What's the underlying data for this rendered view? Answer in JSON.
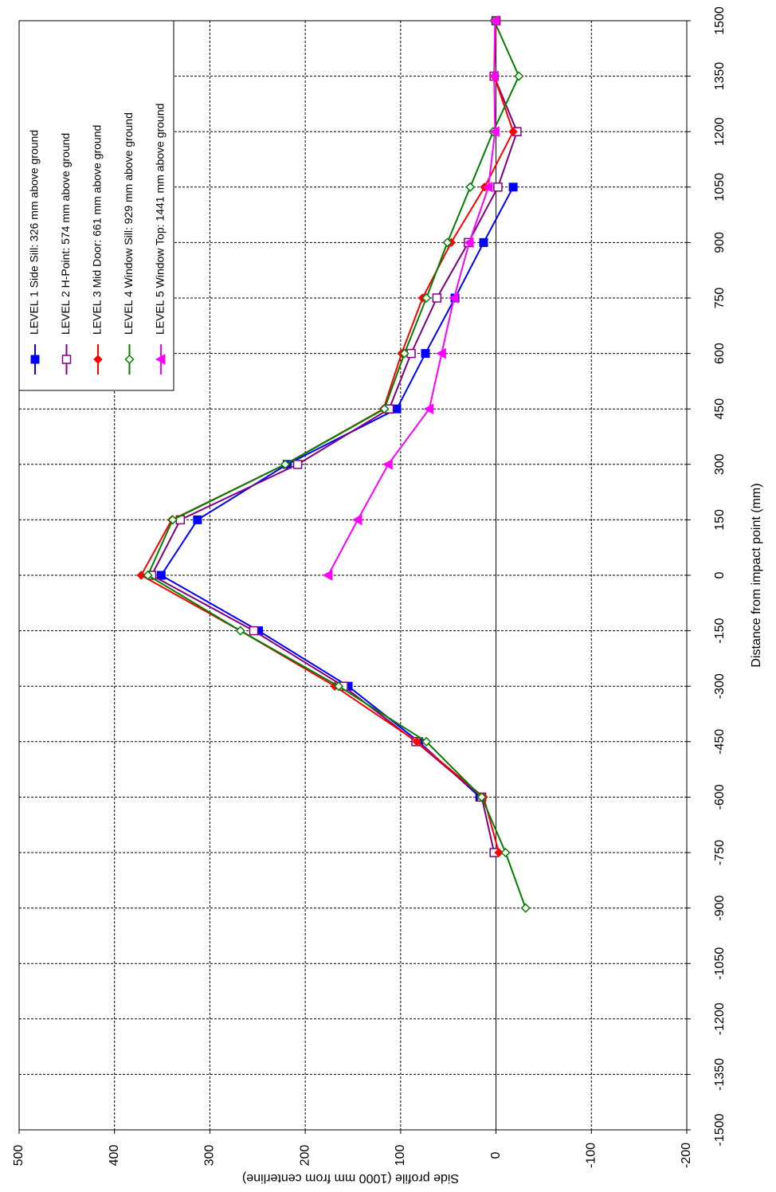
{
  "chart_data": {
    "type": "line",
    "xlabel": "Distance from impact point (mm)",
    "ylabel": "Side profile (1000 mm from centerline)",
    "x": [
      -900,
      -750,
      -600,
      -450,
      -300,
      -150,
      0,
      150,
      300,
      450,
      600,
      750,
      900,
      1050,
      1200,
      1350,
      1500
    ],
    "series": [
      {
        "name": "LEVEL 1 Side Sill:  326 mm above ground",
        "color": "#0000ff",
        "marker": "square",
        "values": [
          null,
          null,
          17,
          81,
          155,
          249,
          351,
          313,
          219,
          104,
          74,
          43,
          13,
          -18,
          null,
          null,
          null
        ]
      },
      {
        "name": "LEVEL 2 H-Point:  574 mm above ground",
        "color": "#800080",
        "marker": "open-square",
        "values": [
          null,
          2,
          15,
          84,
          160,
          254,
          361,
          331,
          208,
          112,
          89,
          62,
          29,
          -2,
          -22,
          2,
          0
        ]
      },
      {
        "name": "LEVEL 3 Mid Door:  661 mm above ground",
        "color": "#ff0000",
        "marker": "diamond",
        "values": [
          null,
          -3,
          13,
          83,
          169,
          268,
          372,
          340,
          221,
          118,
          99,
          77,
          47,
          12,
          -18,
          2,
          0
        ]
      },
      {
        "name": "LEVEL 4 Window Sill:  929 mm above ground",
        "color": "#008000",
        "marker": "open-diamond",
        "values": [
          -31,
          -10,
          15,
          73,
          165,
          268,
          365,
          339,
          221,
          117,
          96,
          73,
          51,
          27,
          3,
          -24,
          2
        ]
      },
      {
        "name": "LEVEL 5 Window Top:  1441 mm above ground",
        "color": "#ff00ff",
        "marker": "triangle",
        "values": [
          null,
          null,
          null,
          null,
          null,
          null,
          176,
          145,
          113,
          70,
          57,
          44,
          28,
          8,
          1,
          2,
          1
        ]
      }
    ],
    "xlim": [
      -1500,
      1500
    ],
    "xticks": [
      -1500,
      -1350,
      -1200,
      -1050,
      -900,
      -750,
      -600,
      -450,
      -300,
      -150,
      0,
      150,
      300,
      450,
      600,
      750,
      900,
      1050,
      1200,
      1350,
      1500
    ],
    "ylim": [
      -200,
      500
    ],
    "yticks": [
      500,
      400,
      300,
      200,
      100,
      0,
      -100,
      -200
    ],
    "grid": true,
    "legend": "upper left"
  }
}
